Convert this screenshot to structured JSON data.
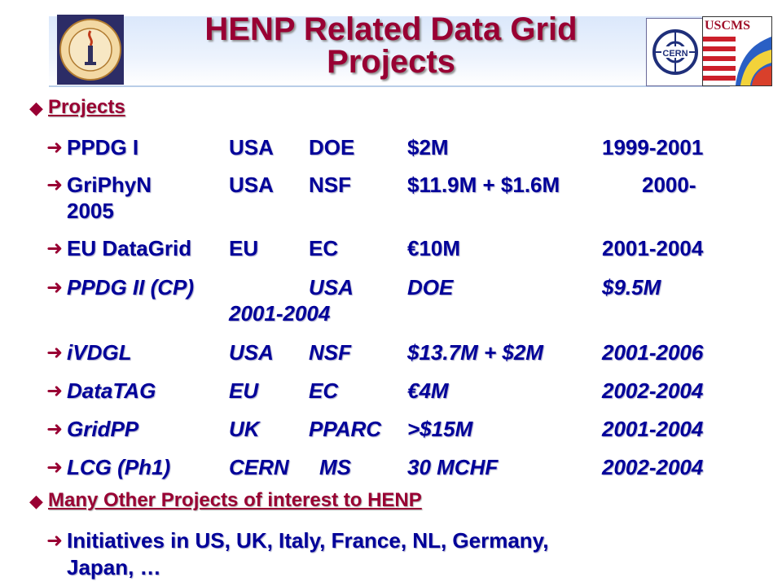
{
  "title": {
    "line1": "HENP Related Data Grid",
    "line2": "Projects"
  },
  "sections": {
    "projects_heading": "Projects",
    "other_heading": "Many Other Projects of interest to HENP"
  },
  "rows": [
    {
      "name": "PPDG I",
      "country": "USA",
      "agency": "DOE",
      "funding": "$2M",
      "years": "1999-2001"
    },
    {
      "name": "GriPhyN",
      "country": "USA",
      "agency": "NSF",
      "funding": "$11.9M + $1.6M",
      "years": "2000-",
      "years_cont": "2005"
    },
    {
      "name": "EU DataGrid",
      "country": "EU",
      "agency": "EC",
      "funding": "€10M",
      "years": "2001-2004"
    },
    {
      "name": "PPDG II (CP)",
      "country": "USA",
      "agency": "DOE",
      "funding": "$9.5M",
      "years_cont": "2001-2004"
    },
    {
      "name": "iVDGL",
      "country": "USA",
      "agency": "NSF",
      "funding": "$13.7M + $2M",
      "years": "2001-2006"
    },
    {
      "name": "DataTAG",
      "country": "EU",
      "agency": "EC",
      "funding": "€4M",
      "years": "2002-2004"
    },
    {
      "name": "GridPP",
      "country": "UK",
      "agency": "PPARC",
      "funding": ">$15M",
      "years": "2001-2004"
    },
    {
      "name": "LCG (Ph1)",
      "country": "CERN",
      "agency": "MS",
      "funding": "30 MCHF",
      "years": "2002-2004"
    }
  ],
  "initiatives": {
    "line1": "Initiatives in US, UK, Italy, France, NL, Germany,",
    "line2": "Japan, …"
  },
  "logos": {
    "caltech": "caltech-seal",
    "cern": "cern-logo",
    "uscms": "uscms-logo",
    "uscms_text": "USCMS"
  },
  "colors": {
    "title": "#990033",
    "text": "#000099",
    "bullet": "#990033"
  }
}
